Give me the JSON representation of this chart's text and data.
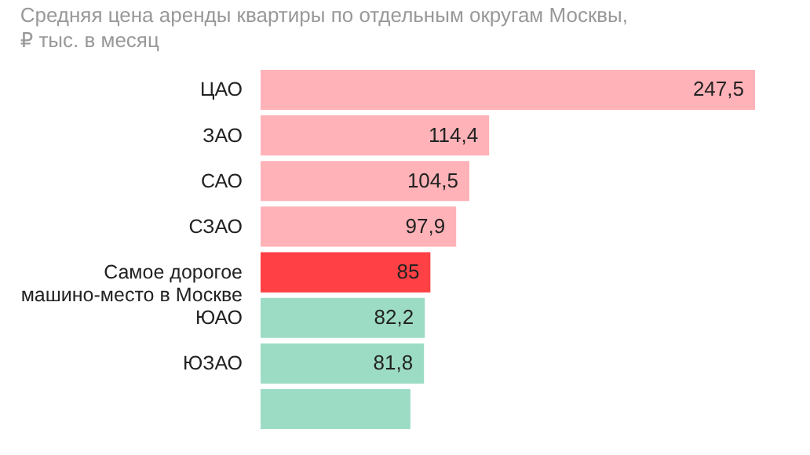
{
  "chart_data": {
    "type": "bar",
    "orientation": "horizontal",
    "title": "Средняя цена аренды квартиры по отдельным округам Москвы,",
    "subtitle": "₽ тыс. в месяц",
    "categories": [
      "ЦАО",
      "ЗАО",
      "САО",
      "СЗАО",
      "Самое дорогое машино-место в Москве",
      "ЮАО",
      "ЮЗАО",
      null
    ],
    "values": [
      247.5,
      114.4,
      104.5,
      97.9,
      85,
      82.2,
      81.8,
      75
    ],
    "value_labels": [
      "247,5",
      "114,4",
      "104,5",
      "97,9",
      "85",
      "82,2",
      "81,8",
      null
    ],
    "colors": [
      "#ffb3b8",
      "#ffb3b8",
      "#ffb3b8",
      "#ffb3b8",
      "#ff4044",
      "#9ddcc4",
      "#9ddcc4",
      "#9ddcc4"
    ]
  }
}
